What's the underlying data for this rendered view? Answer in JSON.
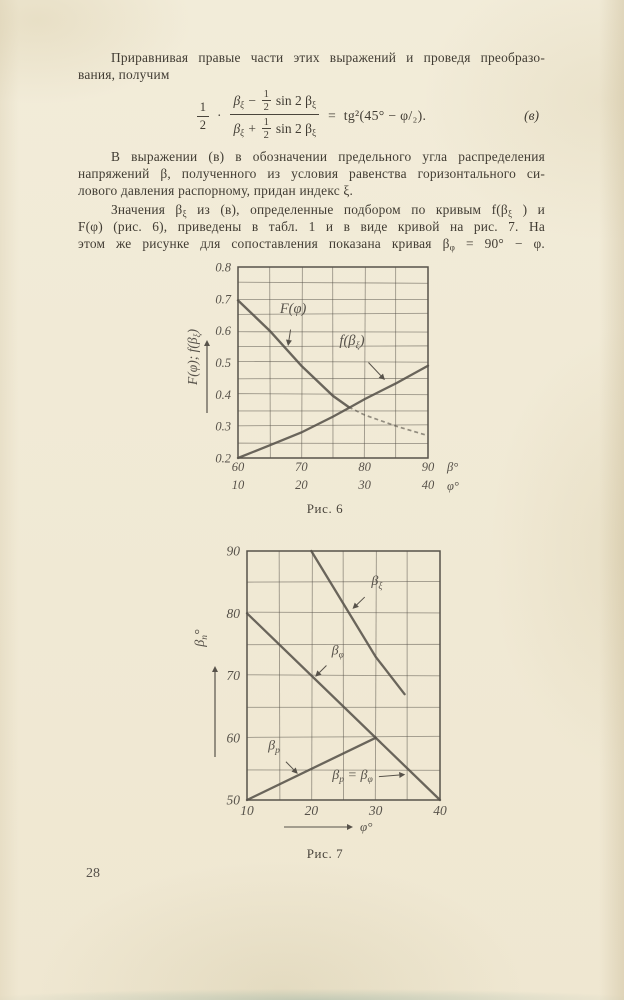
{
  "page": {
    "number": "28",
    "background": "#f0ead6",
    "ink": "#413c33",
    "chart_ink": "#57524a"
  },
  "paragraph1": {
    "lines": [
      "Приравнивая правые части этих выражений и проведя преобразо-",
      "вания, получим"
    ]
  },
  "formula": {
    "lead": {
      "num": "1",
      "den": "2"
    },
    "middot": "·",
    "numerator": {
      "pre": "β{ξ} −",
      "frac_num": "1",
      "frac_den": "2",
      "post": "sin 2 β{ξ}"
    },
    "denominator": {
      "pre": "β{ξ} +",
      "frac_num": "1",
      "frac_den": "2",
      "post": "sin 2 β{ξ}"
    },
    "equals": "=",
    "rhs": "tg²(45° − φ/₂).",
    "tag": "(в)"
  },
  "paragraph2": {
    "lines": [
      "В выражении (в) в обозначении предельного угла  распределения",
      "напряжений β, полученного из условия равенства горизонтального си-",
      "лового давления распорному, придан индекс ξ."
    ]
  },
  "paragraph3": {
    "lines": [
      "Значения β{ξ} из (в),  определенные  подбором  по  кривым  f(β{ξ} ) и",
      "F(φ) (рис. 6), приведены в табл. 1 и в виде кривой на рис. 7. На",
      "этом же рисунке для сопоставления показана кривая β{φ} = 90° − φ."
    ]
  },
  "chart_data": [
    {
      "id": "fig6",
      "type": "line",
      "caption": "Рис. 6",
      "ylabel": "F(φ); f(β{ξ})",
      "xlabel_top": "β°",
      "xlabel_bottom": "φ°",
      "xlim": [
        60,
        90
      ],
      "xlim_bottom": [
        10,
        40
      ],
      "ylim": [
        0.2,
        0.8
      ],
      "grid_dx": 5,
      "grid_dy": 0.05,
      "grid": true,
      "x_ticks_top": [
        "60",
        "70",
        "80",
        "90"
      ],
      "x_ticks_bottom": [
        "10",
        "20",
        "30",
        "40"
      ],
      "y_ticks": [
        "0.8",
        "0.7",
        "0.6",
        "0.5",
        "0.4",
        "0.3",
        "0.2"
      ],
      "series": [
        {
          "name": "F(φ)",
          "points": [
            [
              60,
              0.695
            ],
            [
              65,
              0.6
            ],
            [
              70,
              0.49
            ],
            [
              75,
              0.395
            ],
            [
              77.5,
              0.36
            ],
            [
              80,
              0.335
            ],
            [
              85,
              0.3
            ],
            [
              90,
              0.27
            ]
          ],
          "dash_from_x": 77.5
        },
        {
          "name": "f(β{ξ})",
          "points": [
            [
              60,
              0.2
            ],
            [
              65,
              0.24
            ],
            [
              70,
              0.28
            ],
            [
              75,
              0.33
            ],
            [
              77.5,
              0.357
            ],
            [
              80,
              0.385
            ],
            [
              85,
              0.435
            ],
            [
              90,
              0.49
            ]
          ]
        }
      ],
      "labels": [
        {
          "text": "F(φ)",
          "x": 68.7,
          "y": 0.655,
          "ax": 67.9,
          "ay": 0.552
        },
        {
          "text": "f(β{ξ})",
          "x": 78.0,
          "y": 0.555,
          "ax": 83.2,
          "ay": 0.445
        }
      ]
    },
    {
      "id": "fig7",
      "type": "line",
      "caption": "Рис. 7",
      "ylabel": "β{n}°",
      "xlabel": "φ°",
      "xlim": [
        10,
        40
      ],
      "ylim": [
        50,
        90
      ],
      "grid_dx": 5,
      "grid_dy": 5,
      "grid": true,
      "x_ticks": [
        "10",
        "20",
        "30",
        "40"
      ],
      "y_ticks": [
        "90",
        "80",
        "70",
        "60",
        "50"
      ],
      "series": [
        {
          "name": "β{ξ}",
          "points": [
            [
              20,
              90
            ],
            [
              25,
              81.5
            ],
            [
              30,
              73
            ],
            [
              34.5,
              67
            ]
          ]
        },
        {
          "name": "β{φ}",
          "points": [
            [
              10,
              80
            ],
            [
              40,
              50
            ]
          ]
        },
        {
          "name": "β{p}",
          "points": [
            [
              10,
              50
            ],
            [
              30,
              60
            ]
          ]
        }
      ],
      "labels": [
        {
          "text": "β{ξ}",
          "x": 30.2,
          "y": 84.5,
          "ax": 26.4,
          "ay": 80.7
        },
        {
          "text": "β{φ}",
          "x": 24.1,
          "y": 73.4,
          "ax": 20.6,
          "ay": 69.8
        },
        {
          "text": "β{p}",
          "x": 14.2,
          "y": 58.1,
          "ax": 17.9,
          "ay": 54.2
        },
        {
          "text": "β{p} = β{φ}",
          "x": 26.4,
          "y": 53.4,
          "ax": 34.6,
          "ay": 54.1
        }
      ]
    }
  ]
}
